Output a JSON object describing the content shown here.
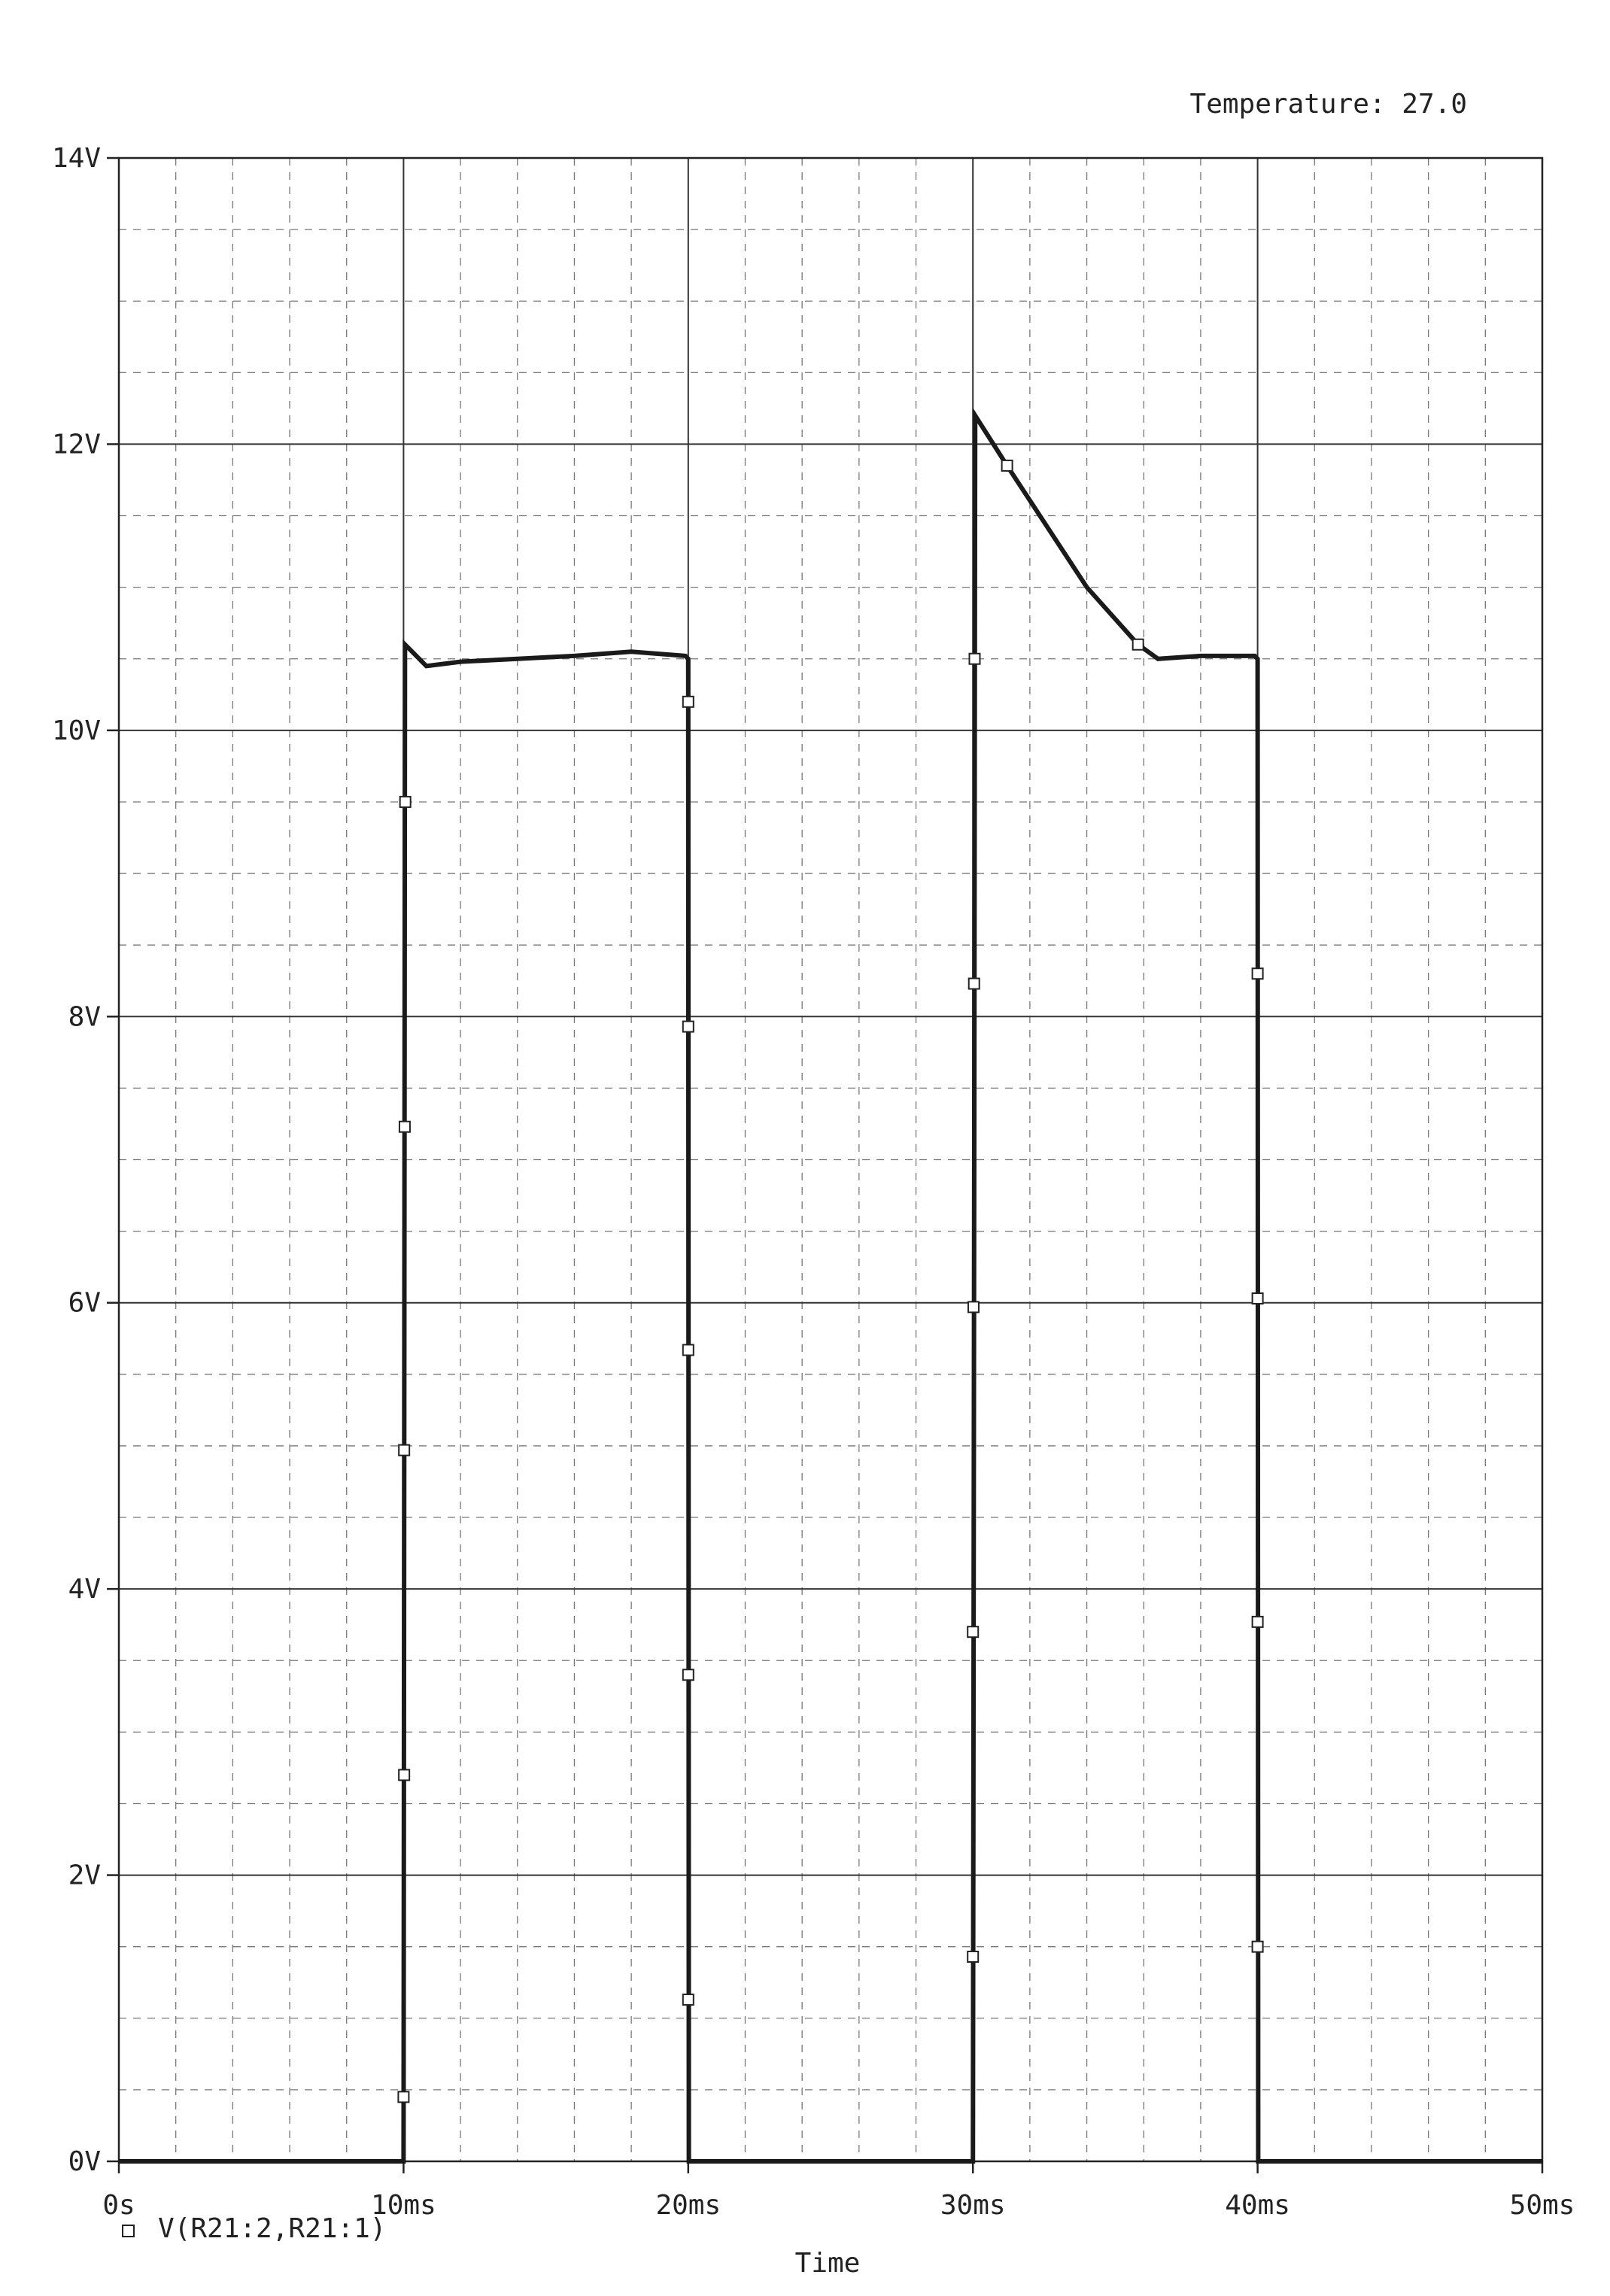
{
  "header": {
    "temperature_label": "Temperature: 27.0"
  },
  "chart_data": {
    "type": "line",
    "xlabel": "Time",
    "ylabel": "",
    "x_unit": "ms",
    "y_unit": "V",
    "xlim": [
      0,
      50
    ],
    "ylim": [
      0,
      14
    ],
    "x_ticks": [
      0,
      10,
      20,
      30,
      40,
      50
    ],
    "x_tick_labels": [
      "0s",
      "10ms",
      "20ms",
      "30ms",
      "40ms",
      "50ms"
    ],
    "y_ticks": [
      0,
      2,
      4,
      6,
      8,
      10,
      12,
      14
    ],
    "y_tick_labels": [
      "0V",
      "2V",
      "4V",
      "6V",
      "8V",
      "10V",
      "12V",
      "14V"
    ],
    "grid": true,
    "legend_position": "bottom-left",
    "series": [
      {
        "name": "V(R21:2,R21:1)",
        "color": "#1a1a1a",
        "points": [
          [
            0,
            0
          ],
          [
            10,
            0
          ],
          [
            10.05,
            10.6
          ],
          [
            10.3,
            10.55
          ],
          [
            10.8,
            10.45
          ],
          [
            12,
            10.48
          ],
          [
            14,
            10.5
          ],
          [
            16,
            10.52
          ],
          [
            18,
            10.55
          ],
          [
            19.9,
            10.52
          ],
          [
            20,
            10.5
          ],
          [
            20.02,
            0
          ],
          [
            30,
            0
          ],
          [
            30.08,
            12.2
          ],
          [
            31.2,
            11.85
          ],
          [
            34,
            11.0
          ],
          [
            35.8,
            10.6
          ],
          [
            36.5,
            10.5
          ],
          [
            38,
            10.52
          ],
          [
            39.9,
            10.52
          ],
          [
            40,
            10.5
          ],
          [
            40.02,
            0
          ],
          [
            50,
            0
          ]
        ],
        "markers": [
          [
            10,
            0.45
          ],
          [
            10.02,
            2.7
          ],
          [
            10.02,
            4.97
          ],
          [
            10.04,
            7.23
          ],
          [
            10.06,
            9.5
          ],
          [
            20,
            10.2
          ],
          [
            20,
            7.93
          ],
          [
            20,
            5.67
          ],
          [
            20,
            3.4
          ],
          [
            20,
            1.13
          ],
          [
            30,
            1.43
          ],
          [
            30,
            3.7
          ],
          [
            30.02,
            5.97
          ],
          [
            30.04,
            8.23
          ],
          [
            30.06,
            10.5
          ],
          [
            31.2,
            11.85
          ],
          [
            35.8,
            10.6
          ],
          [
            40,
            8.3
          ],
          [
            40,
            6.03
          ],
          [
            40,
            3.77
          ],
          [
            40,
            1.5
          ]
        ]
      }
    ]
  }
}
